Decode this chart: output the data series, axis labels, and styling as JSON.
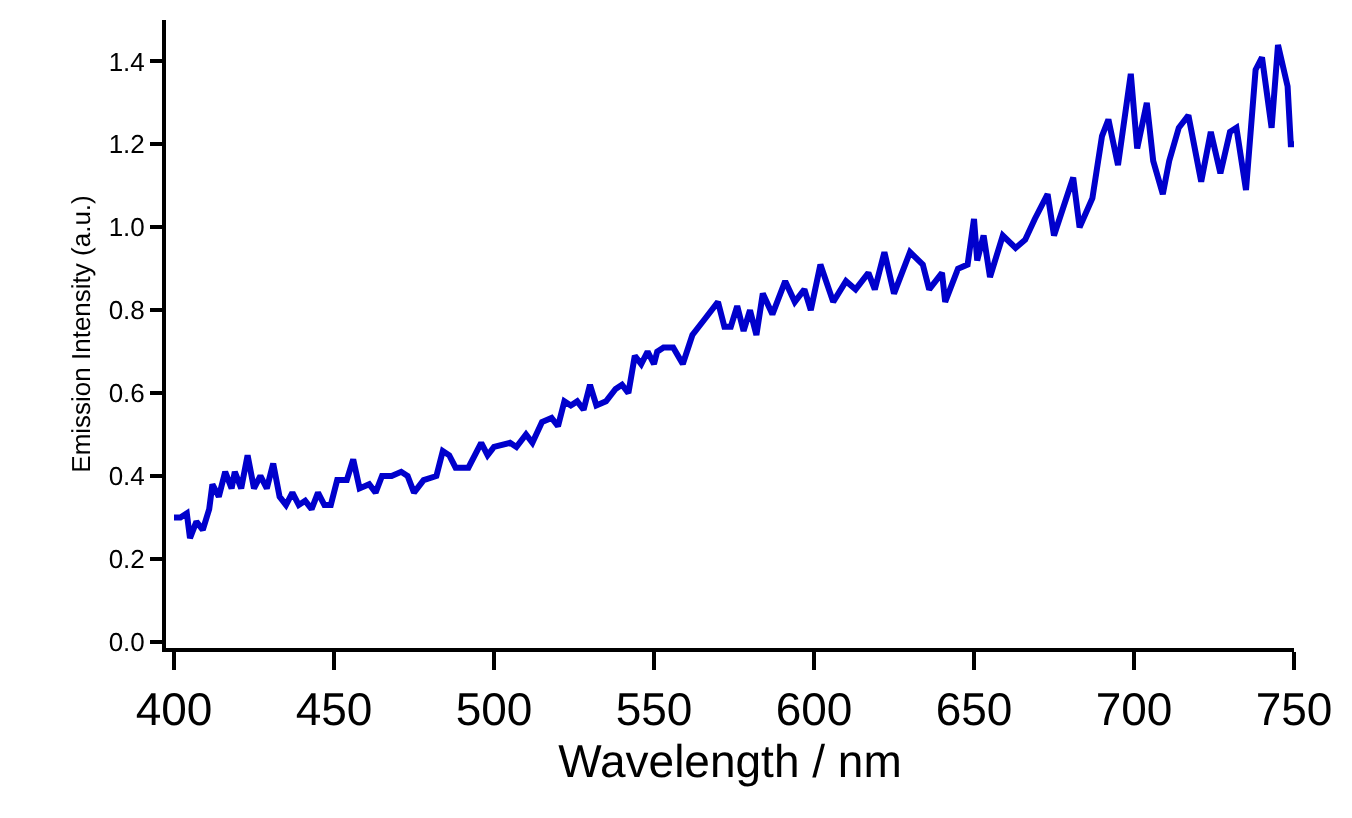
{
  "chart_data": {
    "type": "line",
    "xlabel": "Wavelength / nm",
    "ylabel": "Emission Intensity (a.u.)",
    "xlim": [
      397.5,
      750
    ],
    "ylim": [
      -0.015,
      1.5
    ],
    "xticks": [
      400,
      450,
      500,
      550,
      600,
      650,
      700,
      750
    ],
    "yticks": [
      {
        "value": 0,
        "label": "0.0"
      },
      0.2,
      0.4,
      0.6,
      0.8,
      {
        "value": 1,
        "label": "1.0"
      },
      1.2,
      1.4
    ],
    "marker": "none",
    "line_style": "solid",
    "series": [
      {
        "color": "#0000cc",
        "x": [
          400,
          402,
          404,
          405,
          407,
          409,
          411,
          412,
          414,
          416,
          418,
          419,
          421,
          423,
          425,
          427,
          429,
          431,
          433,
          435,
          437,
          439,
          441,
          443,
          445,
          447,
          449,
          451,
          454,
          456,
          458,
          461,
          463,
          465,
          468,
          471,
          473,
          475,
          478,
          482,
          484,
          486,
          488,
          492,
          496,
          498,
          500,
          505,
          507,
          510,
          512,
          515,
          518,
          520,
          522,
          524,
          526,
          528,
          530,
          532,
          535,
          538,
          540,
          542,
          544,
          546,
          548,
          550,
          551,
          553,
          556,
          559,
          562,
          566,
          570,
          572,
          574,
          576,
          578,
          580,
          582,
          584,
          587,
          591,
          594,
          597,
          599,
          602,
          606,
          610,
          613,
          617,
          619,
          622,
          625,
          630,
          634,
          636,
          640,
          641,
          645,
          648,
          650,
          651,
          653,
          655,
          659,
          663,
          666,
          669,
          673,
          675,
          681,
          683,
          687,
          690,
          692,
          695,
          699,
          701,
          704,
          706,
          709,
          711,
          714,
          717,
          721,
          724,
          727,
          730,
          732,
          735,
          738,
          740,
          743,
          745,
          748,
          749,
          750
        ],
        "values": [
          0.3,
          0.3,
          0.31,
          0.25,
          0.29,
          0.27,
          0.32,
          0.38,
          0.35,
          0.41,
          0.37,
          0.41,
          0.37,
          0.45,
          0.37,
          0.4,
          0.37,
          0.43,
          0.35,
          0.33,
          0.36,
          0.33,
          0.34,
          0.32,
          0.36,
          0.33,
          0.33,
          0.39,
          0.39,
          0.44,
          0.37,
          0.38,
          0.36,
          0.4,
          0.4,
          0.41,
          0.4,
          0.36,
          0.39,
          0.4,
          0.46,
          0.45,
          0.42,
          0.42,
          0.48,
          0.45,
          0.47,
          0.48,
          0.47,
          0.5,
          0.48,
          0.53,
          0.54,
          0.52,
          0.58,
          0.57,
          0.58,
          0.56,
          0.62,
          0.57,
          0.58,
          0.61,
          0.62,
          0.6,
          0.69,
          0.67,
          0.7,
          0.67,
          0.7,
          0.71,
          0.71,
          0.67,
          0.74,
          0.78,
          0.82,
          0.76,
          0.76,
          0.81,
          0.75,
          0.8,
          0.74,
          0.84,
          0.79,
          0.87,
          0.82,
          0.85,
          0.8,
          0.91,
          0.82,
          0.87,
          0.85,
          0.89,
          0.85,
          0.94,
          0.84,
          0.94,
          0.91,
          0.85,
          0.89,
          0.82,
          0.9,
          0.91,
          1.02,
          0.92,
          0.98,
          0.88,
          0.98,
          0.95,
          0.97,
          1.02,
          1.08,
          0.98,
          1.12,
          1.0,
          1.07,
          1.22,
          1.26,
          1.15,
          1.37,
          1.19,
          1.3,
          1.16,
          1.08,
          1.16,
          1.24,
          1.27,
          1.11,
          1.23,
          1.13,
          1.23,
          1.24,
          1.09,
          1.38,
          1.41,
          1.24,
          1.44,
          1.34,
          1.2,
          1.2
        ]
      }
    ]
  }
}
